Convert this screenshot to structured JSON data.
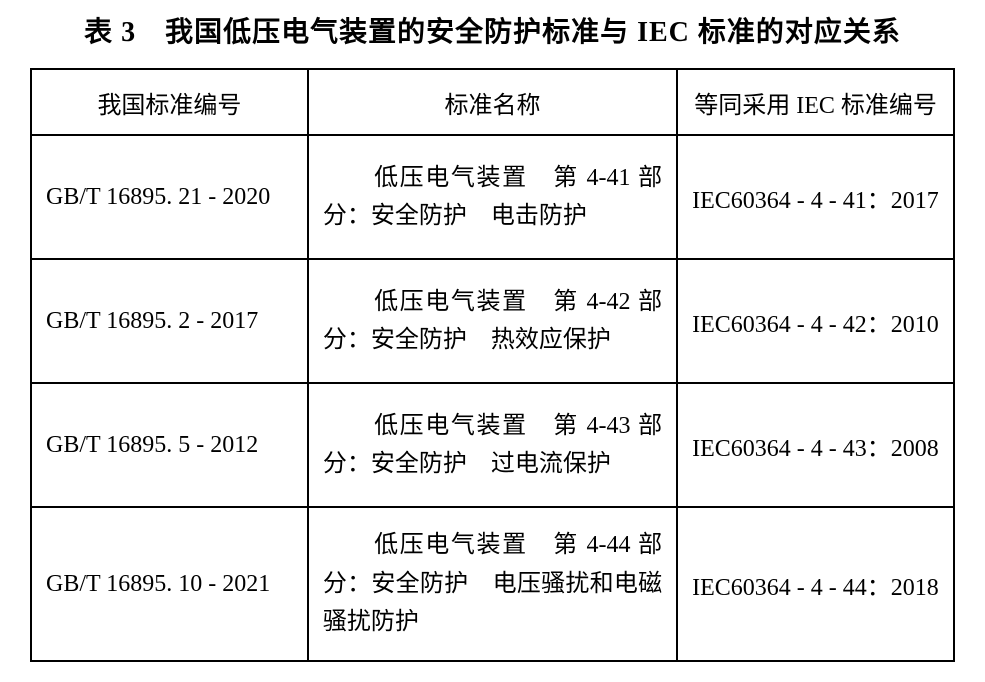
{
  "title": "表 3　我国低压电气装置的安全防护标准与 IEC 标准的对应关系",
  "columns": {
    "c1": "我国标准编号",
    "c2": "标准名称",
    "c3": "等同采用 IEC 标准编号"
  },
  "rows": [
    {
      "gb": "GB/T 16895. 21 - 2020",
      "name": "　　低压电气装置　第 4-41 部分：安全防护　电击防护",
      "iec": "IEC60364 - 4 - 41：2017"
    },
    {
      "gb": "GB/T 16895. 2 - 2017",
      "name": "　　低压电气装置　第 4-42 部分：安全防护　热效应保护",
      "iec": "IEC60364 - 4 - 42：2010"
    },
    {
      "gb": "GB/T 16895. 5 - 2012",
      "name": "　　低压电气装置　第 4-43 部分：安全防护　过电流保护",
      "iec": "IEC60364 - 4 - 43：2008"
    },
    {
      "gb": "GB/T 16895. 10 - 2021",
      "name": "　　低压电气装置　第 4-44 部分：安全防护　电压骚扰和电磁骚扰防护",
      "iec": "IEC60364 - 4 - 44：2018"
    }
  ]
}
